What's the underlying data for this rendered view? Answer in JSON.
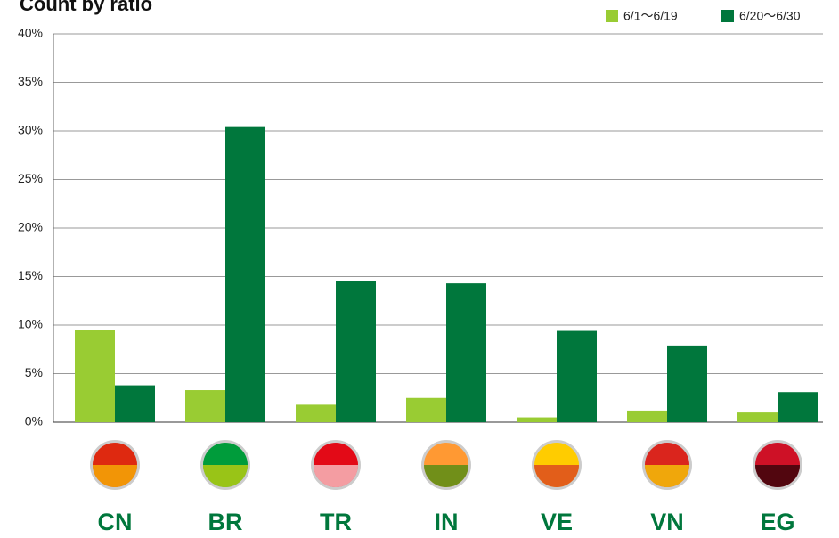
{
  "chart_data": {
    "type": "bar",
    "title": "Count by ratio",
    "categories": [
      "CN",
      "BR",
      "TR",
      "IN",
      "VE",
      "VN",
      "EG"
    ],
    "series": [
      {
        "name": "6/1～6/19",
        "color": "#99cc33",
        "values": [
          9.5,
          3.3,
          1.8,
          2.5,
          0.5,
          1.2,
          1.0
        ]
      },
      {
        "name": "6/20～6/30",
        "color": "#00773c",
        "values": [
          3.8,
          30.4,
          14.5,
          14.3,
          9.4,
          7.9,
          3.1
        ]
      }
    ],
    "ylim": [
      0,
      40
    ],
    "yticks": [
      {
        "value": 0,
        "label": "0%"
      },
      {
        "value": 5,
        "label": "5%"
      },
      {
        "value": 10,
        "label": "10%"
      },
      {
        "value": 15,
        "label": "15%"
      },
      {
        "value": 20,
        "label": "20%"
      },
      {
        "value": 25,
        "label": "25%"
      },
      {
        "value": 30,
        "label": "30%"
      },
      {
        "value": 35,
        "label": "35%"
      },
      {
        "value": 40,
        "label": "40%"
      }
    ],
    "grid": true,
    "legend": "top-right"
  }
}
